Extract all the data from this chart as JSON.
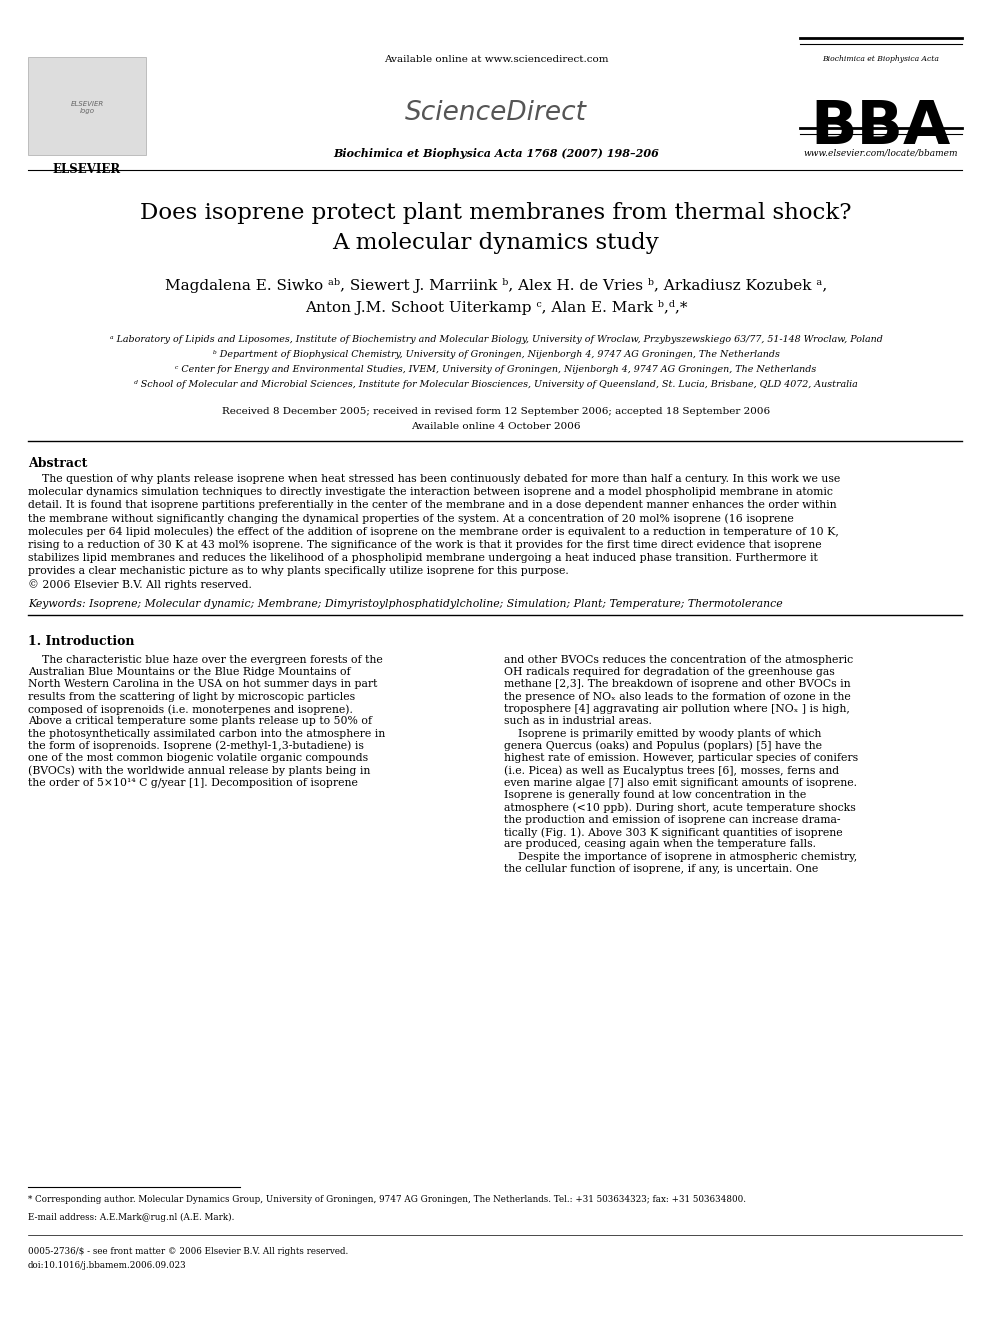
{
  "title_line1": "Does isoprene protect plant membranes from thermal shock?",
  "title_line2": "A molecular dynamics study",
  "authors_line1": "Magdalena E. Siwko ᵃᵇ, Siewert J. Marriink ᵇ, Alex H. de Vries ᵇ, Arkadiusz Kozubek ᵃ,",
  "authors_line2": "Anton J.M. Schoot Uiterkamp ᶜ, Alan E. Mark ᵇ,ᵈ,*",
  "affil_a": "ᵃ Laboratory of Lipids and Liposomes, Institute of Biochemistry and Molecular Biology, University of Wroclaw, Przybyszewskiego 63/77, 51-148 Wroclaw, Poland",
  "affil_b": "ᵇ Department of Biophysical Chemistry, University of Groningen, Nijenborgh 4, 9747 AG Groningen, The Netherlands",
  "affil_c": "ᶜ Center for Energy and Environmental Studies, IVEM, University of Groningen, Nijenborgh 4, 9747 AG Groningen, The Netherlands",
  "affil_d": "ᵈ School of Molecular and Microbial Sciences, Institute for Molecular Biosciences, University of Queensland, St. Lucia, Brisbane, QLD 4072, Australia",
  "received": "Received 8 December 2005; received in revised form 12 September 2006; accepted 18 September 2006",
  "available": "Available online 4 October 2006",
  "journal": "Biochimica et Biophysica Acta 1768 (2007) 198–206",
  "available_online_header": "Available online at www.sciencedirect.com",
  "www": "www.elsevier.com/locate/bbamem",
  "abstract_title": "Abstract",
  "keywords": "Keywords: Isoprene; Molecular dynamic; Membrane; Dimyristoylphosphatidylcholine; Simulation; Plant; Temperature; Thermotolerance",
  "section1_title": "1. Introduction",
  "footnote1": "* Corresponding author. Molecular Dynamics Group, University of Groningen, 9747 AG Groningen, The Netherlands. Tel.: +31 503634323; fax: +31 503634800.",
  "footnote2": "E-mail address: A.E.Mark@rug.nl (A.E. Mark).",
  "footnote3": "0005-2736/$ - see front matter © 2006 Elsevier B.V. All rights reserved.",
  "footnote4": "doi:10.1016/j.bbamem.2006.09.023",
  "bg_color": "#ffffff",
  "text_color": "#000000",
  "abs_lines": [
    "    The question of why plants release isoprene when heat stressed has been continuously debated for more than half a century. In this work we use",
    "molecular dynamics simulation techniques to directly investigate the interaction between isoprene and a model phospholipid membrane in atomic",
    "detail. It is found that isoprene partitions preferentially in the center of the membrane and in a dose dependent manner enhances the order within",
    "the membrane without significantly changing the dynamical properties of the system. At a concentration of 20 mol% isoprene (16 isoprene",
    "molecules per 64 lipid molecules) the effect of the addition of isoprene on the membrane order is equivalent to a reduction in temperature of 10 K,",
    "rising to a reduction of 30 K at 43 mol% isoprene. The significance of the work is that it provides for the first time direct evidence that isoprene",
    "stabilizes lipid membranes and reduces the likelihood of a phospholipid membrane undergoing a heat induced phase transition. Furthermore it",
    "provides a clear mechanistic picture as to why plants specifically utilize isoprene for this purpose.",
    "© 2006 Elsevier B.V. All rights reserved."
  ],
  "col1_lines": [
    "    The characteristic blue haze over the evergreen forests of the",
    "Australian Blue Mountains or the Blue Ridge Mountains of",
    "North Western Carolina in the USA on hot summer days in part",
    "results from the scattering of light by microscopic particles",
    "composed of isoprenoids (i.e. monoterpenes and isoprene).",
    "Above a critical temperature some plants release up to 50% of",
    "the photosynthetically assimilated carbon into the atmosphere in",
    "the form of isoprenoids. Isoprene (2-methyl-1,3-butadiene) is",
    "one of the most common biogenic volatile organic compounds",
    "(BVOCs) with the worldwide annual release by plants being in",
    "the order of 5×10¹⁴ C g/year [1]. Decomposition of isoprene"
  ],
  "col2_lines": [
    "and other BVOCs reduces the concentration of the atmospheric",
    "OH radicals required for degradation of the greenhouse gas",
    "methane [2,3]. The breakdown of isoprene and other BVOCs in",
    "the presence of NOₓ also leads to the formation of ozone in the",
    "troposphere [4] aggravating air pollution where [NOₓ ] is high,",
    "such as in industrial areas.",
    "    Isoprene is primarily emitted by woody plants of which",
    "genera Quercus (oaks) and Populus (poplars) [5] have the",
    "highest rate of emission. However, particular species of conifers",
    "(i.e. Picea) as well as Eucalyptus trees [6], mosses, ferns and",
    "even marine algae [7] also emit significant amounts of isoprene.",
    "Isoprene is generally found at low concentration in the",
    "atmosphere (<10 ppb). During short, acute temperature shocks",
    "the production and emission of isoprene can increase drama-",
    "tically (Fig. 1). Above 303 K significant quantities of isoprene",
    "are produced, ceasing again when the temperature falls.",
    "    Despite the importance of isoprene in atmospheric chemistry,",
    "the cellular function of isoprene, if any, is uncertain. One"
  ]
}
